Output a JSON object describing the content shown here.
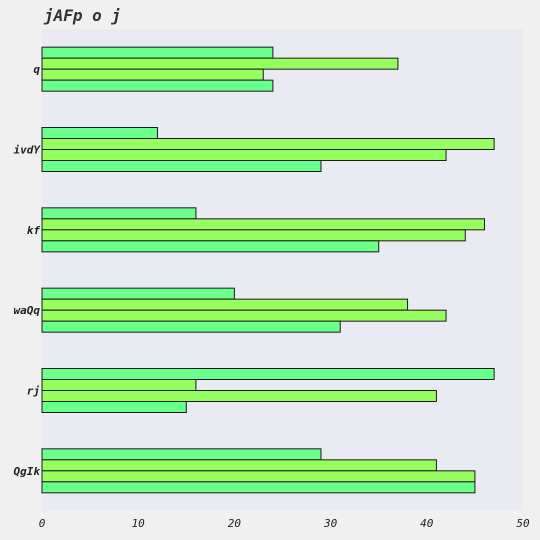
{
  "chart_data": {
    "type": "bar",
    "orientation": "horizontal",
    "title": "jAFp o j",
    "xlabel": "",
    "ylabel": "",
    "categories": [
      "q",
      "ivdY",
      "kf",
      "waQq",
      "rj",
      "QgIk"
    ],
    "series": [
      {
        "values": [
          24,
          12,
          16,
          20,
          47,
          29
        ],
        "color": "#6bff8c"
      },
      {
        "values": [
          37,
          47,
          46,
          38,
          16,
          41
        ],
        "color": "#96ff5f"
      },
      {
        "values": [
          23,
          42,
          44,
          42,
          41,
          45
        ],
        "color": "#96ff5f"
      },
      {
        "values": [
          24,
          29,
          35,
          31,
          15,
          45
        ],
        "color": "#6bff8c"
      }
    ],
    "xlim": [
      0,
      50
    ],
    "xticks": [
      0,
      10,
      20,
      30,
      40,
      50
    ],
    "grid": false,
    "legend": "none",
    "colors": {
      "page_background": "#f0f0f0",
      "plot_background": "#eaeaf2",
      "bar_edge": "#1a1a1a"
    }
  }
}
